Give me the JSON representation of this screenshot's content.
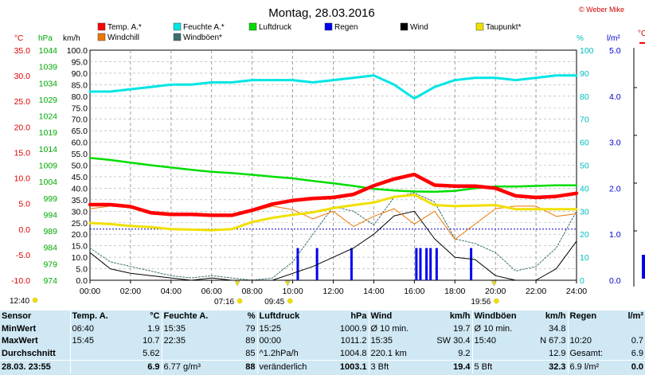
{
  "title": "Montag, 28.03.2016",
  "copyright": "© Weber Mike",
  "legend": [
    {
      "label": "Temp. A.*",
      "color": "#ff0000"
    },
    {
      "label": "Feuchte A.*",
      "color": "#00e5e5"
    },
    {
      "label": "Luftdruck",
      "color": "#00dd00"
    },
    {
      "label": "Regen",
      "color": "#0000ee"
    },
    {
      "label": "Wind",
      "color": "#000000"
    },
    {
      "label": "Taupunkt*",
      "color": "#f0e000"
    },
    {
      "label": "Windchill",
      "color": "#ee7700"
    },
    {
      "label": "Windböen*",
      "color": "#3a6e6e"
    }
  ],
  "axis_units": {
    "temp": "°C",
    "pressure": "hPa",
    "wind": "km/h",
    "humidity": "%",
    "rain": "l/m²"
  },
  "axes": {
    "temp_ticks": [
      "35.0",
      "30.0",
      "25.0",
      "20.0",
      "15.0",
      "10.0",
      "5.0",
      "0.0",
      "-5.0",
      "-10.0"
    ],
    "pressure_ticks": [
      "1044",
      "1039",
      "1034",
      "1029",
      "1024",
      "1019",
      "1014",
      "1009",
      "1004",
      "999",
      "994",
      "989",
      "984",
      "979",
      "974"
    ],
    "wind_ticks": [
      "100.0",
      "95.0",
      "90.0",
      "85.0",
      "80.0",
      "75.0",
      "70.0",
      "65.0",
      "60.0",
      "55.0",
      "50.0",
      "45.0",
      "40.0",
      "35.0",
      "30.0",
      "25.0",
      "20.0",
      "15.0",
      "10.0",
      "5.0",
      "0.0"
    ],
    "humidity_ticks": [
      "100",
      "90",
      "80",
      "70",
      "60",
      "50",
      "40",
      "30",
      "20",
      "10",
      "0"
    ],
    "rain_ticks": [
      "5.0",
      "4.0",
      "3.0",
      "2.0",
      "1.0",
      "0.0"
    ],
    "x_ticks": [
      "00:00",
      "02:00",
      "04:00",
      "06:00",
      "08:00",
      "10:00",
      "12:00",
      "14:00",
      "16:00",
      "18:00",
      "20:00",
      "22:00",
      "24:00"
    ]
  },
  "markers": [
    {
      "label": "12:40",
      "hour": 0
    },
    {
      "label": "07:16",
      "hour": 7.27
    },
    {
      "label": "09:45",
      "hour": 9.75
    },
    {
      "label": "19:56",
      "hour": 19.93
    }
  ],
  "chart_data": {
    "type": "line",
    "title": "Montag, 28.03.2016",
    "x_unit": "hour",
    "xlim": [
      0,
      24
    ],
    "x": [
      0,
      1,
      2,
      3,
      4,
      5,
      6,
      7,
      8,
      9,
      10,
      11,
      12,
      13,
      14,
      15,
      16,
      17,
      18,
      19,
      20,
      21,
      22,
      23,
      24
    ],
    "series": [
      {
        "name": "Temp. A.*",
        "axis": "°C",
        "ylim": [
          -10,
          35
        ],
        "values": [
          4.8,
          4.8,
          4.4,
          3.2,
          2.9,
          2.9,
          2.7,
          2.7,
          3.7,
          4.9,
          5.6,
          6.0,
          6.2,
          6.8,
          8.5,
          9.8,
          10.7,
          8.6,
          8.4,
          8.4,
          8.0,
          6.5,
          6.2,
          6.4,
          7.0
        ]
      },
      {
        "name": "Feuchte A.*",
        "axis": "%",
        "ylim": [
          0,
          100
        ],
        "values": [
          82,
          82,
          83,
          84,
          85,
          85,
          86,
          86,
          87,
          87,
          87,
          86,
          87,
          88,
          89,
          85,
          79,
          84,
          87,
          88,
          88,
          87,
          88,
          89,
          89
        ]
      },
      {
        "name": "Luftdruck",
        "axis": "hPa",
        "ylim": [
          974,
          1044
        ],
        "values": [
          1011.2,
          1010.6,
          1009.8,
          1009.0,
          1008.3,
          1007.6,
          1007.0,
          1006.6,
          1006.1,
          1005.5,
          1005.0,
          1004.2,
          1003.5,
          1002.7,
          1001.8,
          1001.3,
          1001.0,
          1000.9,
          1001.2,
          1002.0,
          1002.5,
          1002.5,
          1002.7,
          1002.9,
          1002.9
        ]
      },
      {
        "name": "Taupunkt*",
        "axis": "°C",
        "ylim": [
          -10,
          35
        ],
        "values": [
          1.2,
          1.0,
          0.6,
          0.4,
          0.0,
          -0.1,
          -0.2,
          0.0,
          1.4,
          2.2,
          2.8,
          3.3,
          4.1,
          4.7,
          5.2,
          6.3,
          6.7,
          4.7,
          4.5,
          4.6,
          4.7,
          3.9,
          3.9,
          3.9,
          3.9
        ]
      },
      {
        "name": "Windchill",
        "axis": "°C",
        "ylim": [
          -10,
          35
        ],
        "values": [
          4.0,
          4.5,
          4.2,
          3.0,
          2.6,
          2.8,
          2.5,
          2.5,
          3.4,
          4.5,
          3.8,
          2.0,
          3.5,
          0.5,
          2.5,
          4.0,
          1.0,
          3.5,
          -2.0,
          1.0,
          4.0,
          4.5,
          4.5,
          2.5,
          3.0
        ]
      },
      {
        "name": "Wind",
        "axis": "km/h",
        "ylim": [
          0,
          100
        ],
        "values": [
          12,
          5,
          3,
          2,
          1,
          0,
          1,
          0,
          0,
          0,
          3,
          6,
          10,
          14,
          20,
          28,
          30,
          18,
          10,
          9,
          2,
          0,
          0,
          5,
          17
        ]
      },
      {
        "name": "Windböen*",
        "axis": "km/h",
        "ylim": [
          0,
          100
        ],
        "values": [
          14,
          8,
          6,
          4,
          2,
          1,
          2,
          1,
          0,
          1,
          8,
          20,
          32,
          30,
          24,
          36,
          38,
          34,
          18,
          16,
          12,
          4,
          6,
          14,
          30
        ]
      },
      {
        "name": "Regen",
        "axis": "l/m²",
        "ylim": [
          0,
          5
        ],
        "type": "bar",
        "points": [
          [
            10.25,
            0.7
          ],
          [
            11.2,
            0.7
          ],
          [
            12.9,
            0.7
          ],
          [
            16.1,
            0.7
          ],
          [
            16.3,
            0.7
          ],
          [
            16.6,
            0.7
          ],
          [
            16.8,
            0.7
          ],
          [
            17.1,
            0.7
          ],
          [
            18.8,
            0.7
          ]
        ]
      }
    ]
  },
  "stats": {
    "headers": {
      "sensor": "Sensor",
      "temp": "Temp. A.",
      "temp_unit": "°C",
      "hum": "Feuchte A.",
      "hum_unit": "%",
      "press": "Luftdruck",
      "press_unit": "hPa",
      "wind": "Wind",
      "wind_unit": "km/h",
      "gust": "Windböen",
      "gust_unit": "km/h",
      "rain": "Regen",
      "rain_unit": "l/m²"
    },
    "rows": [
      {
        "label": "MinWert",
        "temp_t": "06:40",
        "temp_v": "1.9",
        "hum_t": "15:35",
        "hum_v": "79",
        "press_t": "15:25",
        "press_v": "1000.9",
        "wind_t": "Ø 10 min.",
        "wind_v": "19.7",
        "gust_t": "Ø 10 min.",
        "gust_v": "34.8",
        "rain_t": "",
        "rain_v": ""
      },
      {
        "label": "MaxWert",
        "temp_t": "15:45",
        "temp_v": "10.7",
        "hum_t": "22:35",
        "hum_v": "89",
        "press_t": "00:00",
        "press_v": "1011.2",
        "wind_t": "15:35",
        "wind_v": "SW 30.4",
        "gust_t": "15:40",
        "gust_v": "N 67.3",
        "rain_t": "10:20",
        "rain_v": "0.7"
      },
      {
        "label": "Durchschnitt",
        "temp_t": "",
        "temp_v": "5.62",
        "hum_t": "",
        "hum_v": "85",
        "press_t": "^1.2hPa/h",
        "press_v": "1004.8",
        "wind_t": "220.1 km",
        "wind_v": "9.2",
        "gust_t": "",
        "gust_v": "12.9",
        "rain_t": "Gesamt:",
        "rain_v": "6.9"
      },
      {
        "label": "28.03. 23:55",
        "temp_t": "",
        "temp_v": "6.9",
        "hum_t": "6.77 g/m³",
        "hum_v": "88",
        "press_t": "veränderlich",
        "press_v": "1003.1",
        "wind_t": "3 Bft",
        "wind_v": "19.4",
        "gust_t": "5 Bft",
        "gust_v": "32.3",
        "rain_t": "6.9 l/m²",
        "rain_v": "0.0"
      }
    ]
  }
}
